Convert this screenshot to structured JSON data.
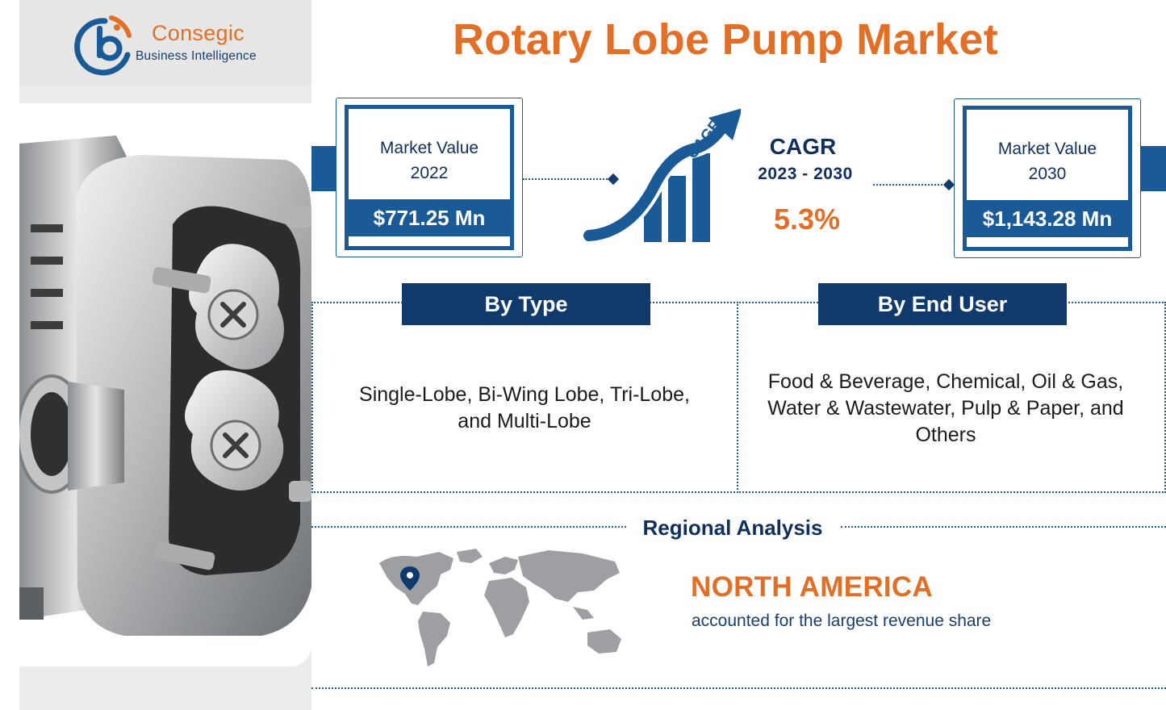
{
  "brand": {
    "name": "Consegic",
    "tagline": "Business Intelligence",
    "colors": {
      "primary": "#1a5a97",
      "accent": "#e36f26",
      "dark": "#0f3a6b"
    }
  },
  "title": "Rotary Lobe Pump Market",
  "market_2022": {
    "label_line1": "Market Value",
    "label_line2": "2022",
    "value": "$771.25 Mn"
  },
  "market_2030": {
    "label_line1": "Market Value",
    "label_line2": "2030",
    "value": "$1,143.28 Mn"
  },
  "cagr": {
    "arrow_label": "CAGR",
    "title": "CAGR",
    "years": "2023 - 2030",
    "value": "5.3%",
    "icon": "growth-arrow-icon"
  },
  "segments": {
    "by_type": {
      "heading": "By Type",
      "text": "Single-Lobe, Bi-Wing Lobe, Tri-Lobe, and Multi-Lobe"
    },
    "by_end_user": {
      "heading": "By End User",
      "text": "Food & Beverage, Chemical, Oil & Gas, Water & Wastewater, Pulp & Paper, and Others"
    }
  },
  "regional": {
    "heading": "Regional Analysis",
    "region": "NORTH AMERICA",
    "description": "accounted for the largest revenue share",
    "map_icon": "world-map-icon",
    "pin_icon": "location-pin-icon"
  },
  "image": {
    "subject": "rotary-lobe-pump-photo"
  }
}
